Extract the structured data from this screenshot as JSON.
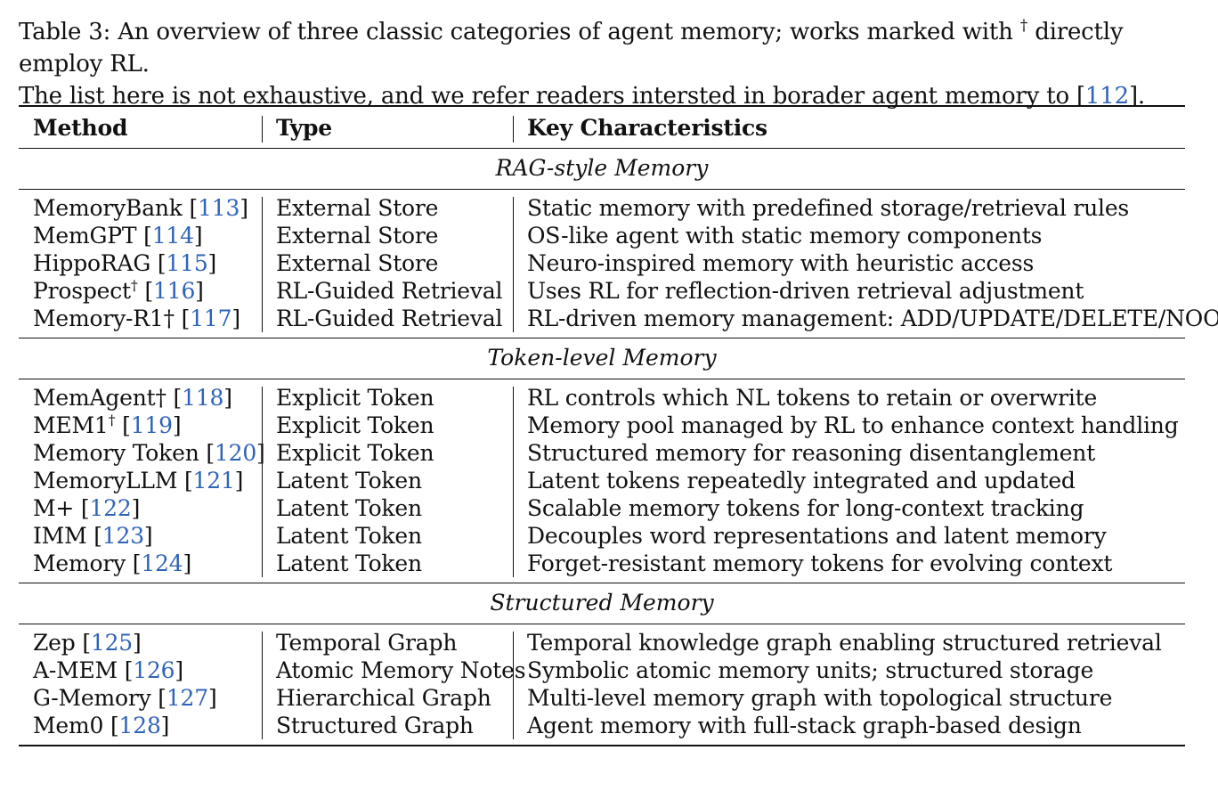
{
  "caption": {
    "line1_a": "Table 3: An overview of three classic categories of agent memory; works marked with",
    "dagger": "†",
    "line1_b": "directly employ RL.",
    "line2_a": "The list here is not exhaustive, and we refer readers intersted in borader agent memory to [",
    "line2_ref": "112",
    "line2_b": "]."
  },
  "table": {
    "headers": [
      "Method",
      "Type",
      "Key Characteristics"
    ],
    "sections": [
      {
        "title": "RAG-style Memory",
        "rows": [
          {
            "method": "MemoryBank",
            "dagger": "",
            "ref": "113",
            "type": "External Store",
            "desc": "Static memory with predefined storage/retrieval rules"
          },
          {
            "method": "MemGPT",
            "dagger": "",
            "ref": "114",
            "type": "External Store",
            "desc": "OS-like agent with static memory components"
          },
          {
            "method": "HippoRAG",
            "dagger": "",
            "ref": "115",
            "type": "External Store",
            "desc": "Neuro-inspired memory with heuristic access"
          },
          {
            "method": "Prospect",
            "dagger": "†",
            "ref": "116",
            "type": "RL-Guided Retrieval",
            "desc": "Uses RL for reflection-driven retrieval adjustment"
          },
          {
            "method": "Memory-R1†",
            "dagger": "",
            "ref": "117",
            "type": "RL-Guided Retrieval",
            "desc": "RL-driven memory management: ADD/UPDATE/DELETE/NOOP"
          }
        ]
      },
      {
        "title": "Token-level Memory",
        "rows": [
          {
            "method": "MemAgent†",
            "dagger": "",
            "ref": "118",
            "type": "Explicit Token",
            "desc": "RL controls which NL tokens to retain or overwrite"
          },
          {
            "method": "MEM1",
            "dagger": "†",
            "ref": "119",
            "type": "Explicit Token",
            "desc": "Memory pool managed by RL to enhance context handling"
          },
          {
            "method": "Memory Token",
            "dagger": "",
            "ref": "120",
            "type": "Explicit Token",
            "desc": "Structured memory for reasoning disentanglement"
          },
          {
            "method": "MemoryLLM",
            "dagger": "",
            "ref": "121",
            "type": "Latent Token",
            "desc": "Latent tokens repeatedly integrated and updated"
          },
          {
            "method": "M+",
            "dagger": "",
            "ref": "122",
            "type": "Latent Token",
            "desc": "Scalable memory tokens for long-context tracking"
          },
          {
            "method": "IMM",
            "dagger": "",
            "ref": "123",
            "type": "Latent Token",
            "desc": "Decouples word representations and latent memory"
          },
          {
            "method": "Memory",
            "dagger": "",
            "ref": "124",
            "type": "Latent Token",
            "desc": "Forget-resistant memory tokens for evolving context"
          }
        ]
      },
      {
        "title": "Structured Memory",
        "rows": [
          {
            "method": "Zep",
            "dagger": "",
            "ref": "125",
            "type": "Temporal Graph",
            "desc": "Temporal knowledge graph enabling structured retrieval"
          },
          {
            "method": "A-MEM",
            "dagger": "",
            "ref": "126",
            "type": "Atomic Memory Notes",
            "desc": "Symbolic atomic memory units; structured storage"
          },
          {
            "method": "G-Memory",
            "dagger": "",
            "ref": "127",
            "type": "Hierarchical Graph",
            "desc": "Multi-level memory graph with topological structure"
          },
          {
            "method": "Mem0",
            "dagger": "",
            "ref": "128",
            "type": "Structured Graph",
            "desc": "Agent memory with full-stack graph-based design"
          }
        ]
      }
    ]
  },
  "colors": {
    "citation": "#2f63b8",
    "text": "#111111"
  }
}
